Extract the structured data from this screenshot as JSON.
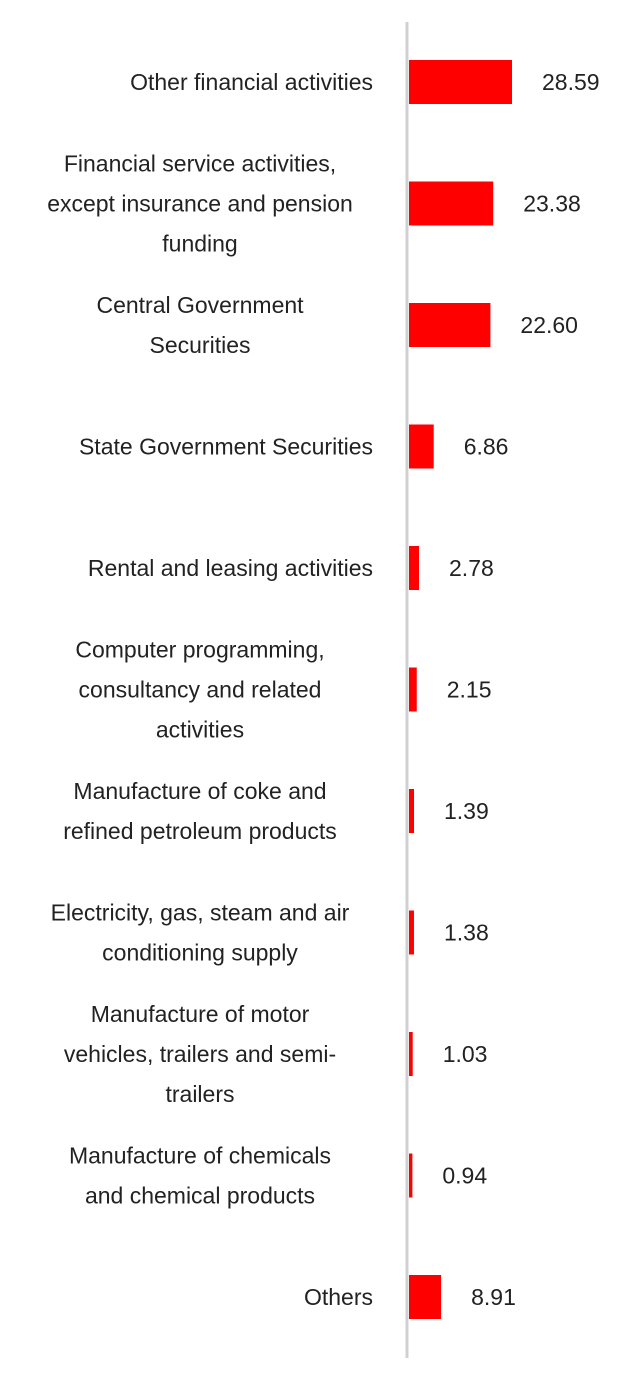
{
  "chart_data": {
    "type": "bar",
    "orientation": "horizontal",
    "categories": [
      "Other financial activities",
      "Financial service activities, except insurance and pension funding",
      "Central Government Securities",
      "State Government Securities",
      "Rental and leasing activities",
      "Computer programming, consultancy and related activities",
      "Manufacture of coke and refined petroleum products",
      "Electricity, gas, steam and air conditioning supply",
      "Manufacture of motor vehicles, trailers and semi-trailers",
      "Manufacture of chemicals and chemical products",
      "Others"
    ],
    "category_lines": [
      [
        "Other financial activities"
      ],
      [
        "Financial service activities,",
        "except insurance and pension",
        "funding"
      ],
      [
        "Central Government",
        "Securities"
      ],
      [
        "State Government Securities"
      ],
      [
        "Rental and leasing activities"
      ],
      [
        "Computer programming,",
        "consultancy and related",
        "activities"
      ],
      [
        "Manufacture of coke and",
        "refined petroleum products"
      ],
      [
        "Electricity, gas, steam and air",
        "conditioning supply"
      ],
      [
        "Manufacture of motor",
        "vehicles, trailers and semi-",
        "trailers"
      ],
      [
        "Manufacture of chemicals",
        "and chemical products"
      ],
      [
        "Others"
      ]
    ],
    "values": [
      28.59,
      23.38,
      22.6,
      6.86,
      2.78,
      2.15,
      1.39,
      1.38,
      1.03,
      0.94,
      8.91
    ],
    "value_labels": [
      "28.59",
      "23.38",
      "22.60",
      "6.86",
      "2.78",
      "2.15",
      "1.39",
      "1.38",
      "1.03",
      "0.94",
      "8.91"
    ],
    "xlim": [
      0,
      28.59
    ],
    "grid": false,
    "colors": {
      "bar": "#ff0000",
      "axis": "#d0d0d0",
      "text": "#222222"
    }
  }
}
